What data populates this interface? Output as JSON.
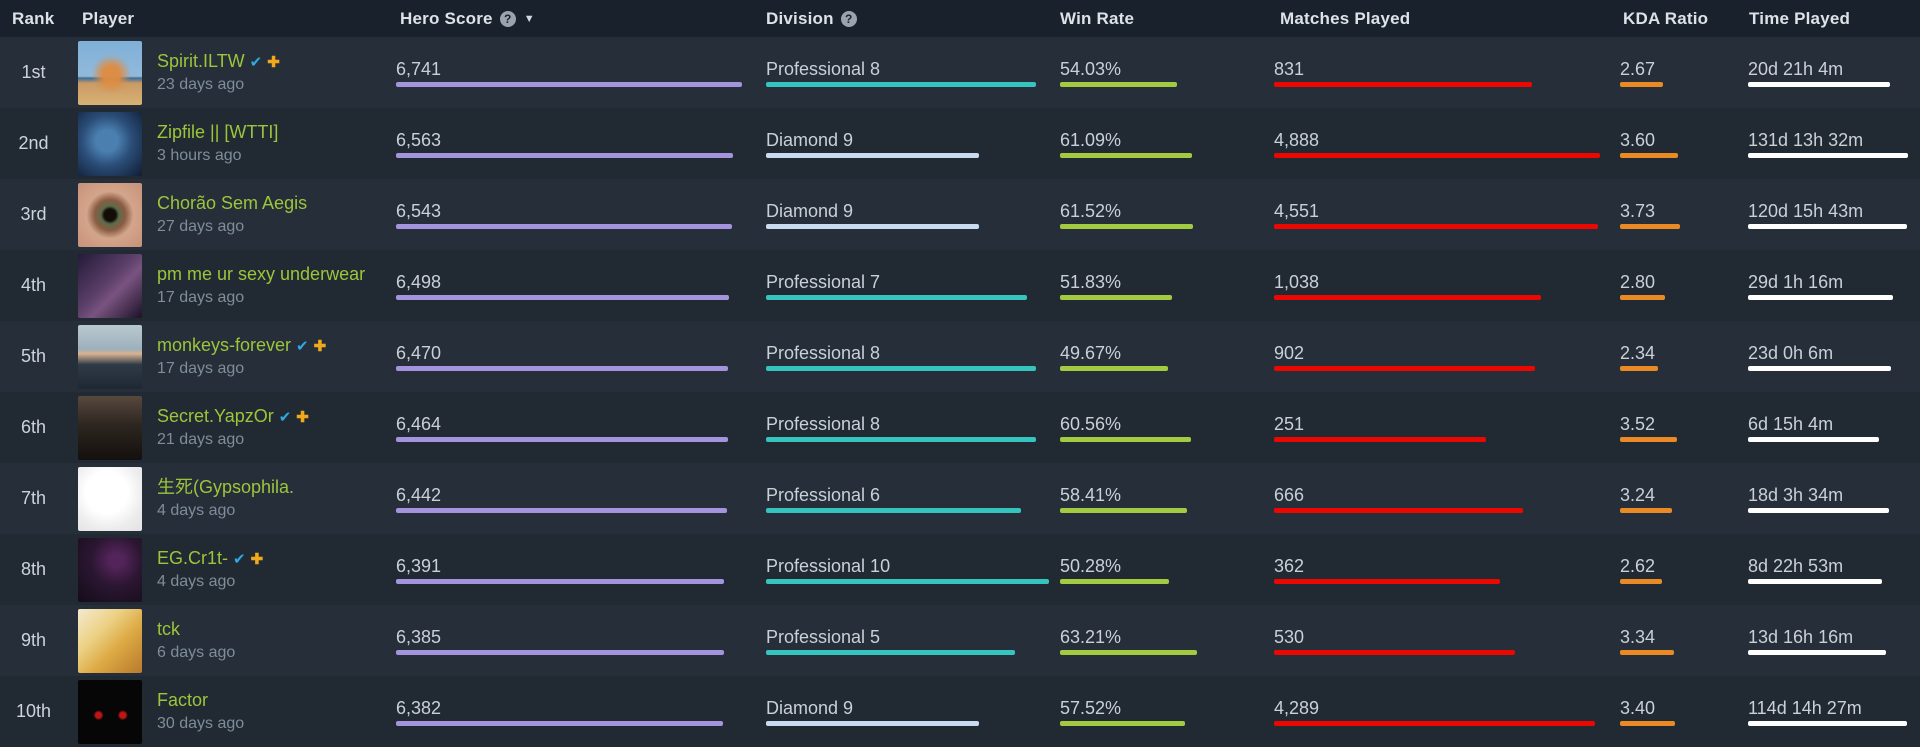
{
  "icons": {
    "help": "?",
    "sort_desc": "▼",
    "verified": "✔",
    "plus": "✚"
  },
  "colors": {
    "header_bg": "#19222c",
    "row_odd": "#252e39",
    "row_even": "#212a33",
    "name_green": "#9cc53b",
    "verified_blue": "#2fa9e2",
    "plus_gold": "#f0a91c",
    "score_purple": "#a493dd",
    "division_professional_teal": "#35c5be",
    "division_diamond_blue": "#c9dbf0",
    "win_rate_green": "#a2cb41",
    "matches_red": "#ec0800",
    "kda_orange": "#ea8a24",
    "time_white": "#ffffff"
  },
  "table": {
    "columns": [
      {
        "label": "Rank"
      },
      {
        "label": "Player"
      },
      {
        "label": "Hero Score",
        "help": true,
        "sorted_desc": true
      },
      {
        "label": "Division",
        "help": true
      },
      {
        "label": "Win Rate"
      },
      {
        "label": "Matches Played"
      },
      {
        "label": "KDA Ratio"
      },
      {
        "label": "Time Played"
      }
    ],
    "rows": [
      {
        "rank": "1st",
        "name": "Spirit.ILTW",
        "verified": true,
        "plus": true,
        "last_match": "23 days ago",
        "avatar": "fox-on-beach",
        "hero_score": "6,741",
        "division": "Professional 8",
        "division_type": "professional",
        "win_rate": "54.03%",
        "matches": "831",
        "kda": "2.67",
        "time": "20d 21h 4m",
        "bars": {
          "score": 346,
          "division": 270,
          "win": 117,
          "matches": 258,
          "kda": 43,
          "time": 142
        }
      },
      {
        "rank": "2nd",
        "name": "Zipfile || [WTTI]",
        "verified": false,
        "plus": false,
        "last_match": "3 hours ago",
        "avatar": "blue-shades-man",
        "hero_score": "6,563",
        "division": "Diamond 9",
        "division_type": "diamond",
        "win_rate": "61.09%",
        "matches": "4,888",
        "kda": "3.60",
        "time": "131d 13h 32m",
        "bars": {
          "score": 337,
          "division": 213,
          "win": 132,
          "matches": 326,
          "kda": 58,
          "time": 160
        }
      },
      {
        "rank": "3rd",
        "name": "Chorão Sem Aegis",
        "verified": false,
        "plus": false,
        "last_match": "27 days ago",
        "avatar": "eye-closeup",
        "hero_score": "6,543",
        "division": "Diamond 9",
        "division_type": "diamond",
        "win_rate": "61.52%",
        "matches": "4,551",
        "kda": "3.73",
        "time": "120d 15h 43m",
        "bars": {
          "score": 336,
          "division": 213,
          "win": 133,
          "matches": 324,
          "kda": 60,
          "time": 159
        }
      },
      {
        "rank": "4th",
        "name": "pm me ur sexy underwear",
        "verified": false,
        "plus": false,
        "last_match": "17 days ago",
        "avatar": "purple-woman",
        "hero_score": "6,498",
        "division": "Professional 7",
        "division_type": "professional",
        "win_rate": "51.83%",
        "matches": "1,038",
        "kda": "2.80",
        "time": "29d 1h 16m",
        "bars": {
          "score": 333,
          "division": 261,
          "win": 112,
          "matches": 267,
          "kda": 45,
          "time": 145
        }
      },
      {
        "rank": "5th",
        "name": "monkeys-forever",
        "verified": true,
        "plus": true,
        "last_match": "17 days ago",
        "avatar": "mustache-man",
        "hero_score": "6,470",
        "division": "Professional 8",
        "division_type": "professional",
        "win_rate": "49.67%",
        "matches": "902",
        "kda": "2.34",
        "time": "23d 0h 6m",
        "bars": {
          "score": 332,
          "division": 270,
          "win": 108,
          "matches": 261,
          "kda": 38,
          "time": 143
        }
      },
      {
        "rank": "6th",
        "name": "Secret.YapzOr",
        "verified": true,
        "plus": true,
        "last_match": "21 days ago",
        "avatar": "bearded-man",
        "hero_score": "6,464",
        "division": "Professional 8",
        "division_type": "professional",
        "win_rate": "60.56%",
        "matches": "251",
        "kda": "3.52",
        "time": "6d 15h 4m",
        "bars": {
          "score": 332,
          "division": 270,
          "win": 131,
          "matches": 212,
          "kda": 57,
          "time": 131
        }
      },
      {
        "rank": "7th",
        "name": "生死(Gypsophila.",
        "verified": false,
        "plus": false,
        "last_match": "4 days ago",
        "avatar": "white-sketch",
        "hero_score": "6,442",
        "division": "Professional 6",
        "division_type": "professional",
        "win_rate": "58.41%",
        "matches": "666",
        "kda": "3.24",
        "time": "18d 3h 34m",
        "bars": {
          "score": 331,
          "division": 255,
          "win": 127,
          "matches": 249,
          "kda": 52,
          "time": 141
        }
      },
      {
        "rank": "8th",
        "name": "EG.Cr1t-",
        "verified": true,
        "plus": true,
        "last_match": "4 days ago",
        "avatar": "dark-web",
        "hero_score": "6,391",
        "division": "Professional 10",
        "division_type": "professional",
        "win_rate": "50.28%",
        "matches": "362",
        "kda": "2.62",
        "time": "8d 22h 53m",
        "bars": {
          "score": 328,
          "division": 283,
          "win": 109,
          "matches": 226,
          "kda": 42,
          "time": 134
        }
      },
      {
        "rank": "9th",
        "name": "tck",
        "verified": false,
        "plus": false,
        "last_match": "6 days ago",
        "avatar": "yellow-art",
        "hero_score": "6,385",
        "division": "Professional 5",
        "division_type": "professional",
        "win_rate": "63.21%",
        "matches": "530",
        "kda": "3.34",
        "time": "13d 16h 16m",
        "bars": {
          "score": 328,
          "division": 249,
          "win": 137,
          "matches": 241,
          "kda": 54,
          "time": 138
        }
      },
      {
        "rank": "10th",
        "name": "Factor",
        "verified": false,
        "plus": false,
        "last_match": "30 days ago",
        "avatar": "red-eyes",
        "hero_score": "6,382",
        "division": "Diamond 9",
        "division_type": "diamond",
        "win_rate": "57.52%",
        "matches": "4,289",
        "kda": "3.40",
        "time": "114d 14h 27m",
        "bars": {
          "score": 327,
          "division": 213,
          "win": 125,
          "matches": 321,
          "kda": 55,
          "time": 159
        }
      }
    ]
  }
}
